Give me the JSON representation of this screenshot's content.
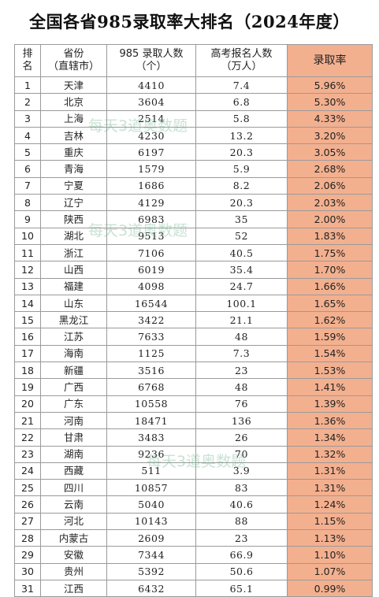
{
  "title": "全国各省985录取率大排名（2024年度）",
  "headers": {
    "rank": [
      "排",
      "名"
    ],
    "province": [
      "省份",
      "（直辖市）"
    ],
    "admitted": [
      "985 录取人数",
      "（个）"
    ],
    "examinees": [
      "高考报名人数",
      "（万人）"
    ],
    "rate": "录取率"
  },
  "rows": [
    {
      "rank": "1",
      "province": "天津",
      "admitted": "4410",
      "examinees": "7.4",
      "rate": "5.96%"
    },
    {
      "rank": "2",
      "province": "北京",
      "admitted": "3604",
      "examinees": "6.8",
      "rate": "5.30%"
    },
    {
      "rank": "3",
      "province": "上海",
      "admitted": "2514",
      "examinees": "5.8",
      "rate": "4.33%"
    },
    {
      "rank": "4",
      "province": "吉林",
      "admitted": "4230",
      "examinees": "13.2",
      "rate": "3.20%"
    },
    {
      "rank": "5",
      "province": "重庆",
      "admitted": "6197",
      "examinees": "20.3",
      "rate": "3.05%"
    },
    {
      "rank": "6",
      "province": "青海",
      "admitted": "1579",
      "examinees": "5.9",
      "rate": "2.68%"
    },
    {
      "rank": "7",
      "province": "宁夏",
      "admitted": "1686",
      "examinees": "8.2",
      "rate": "2.06%"
    },
    {
      "rank": "8",
      "province": "辽宁",
      "admitted": "4129",
      "examinees": "20.3",
      "rate": "2.03%"
    },
    {
      "rank": "9",
      "province": "陕西",
      "admitted": "6983",
      "examinees": "35",
      "rate": "2.00%"
    },
    {
      "rank": "10",
      "province": "湖北",
      "admitted": "9513",
      "examinees": "52",
      "rate": "1.83%"
    },
    {
      "rank": "11",
      "province": "浙江",
      "admitted": "7106",
      "examinees": "40.5",
      "rate": "1.75%"
    },
    {
      "rank": "12",
      "province": "山西",
      "admitted": "6019",
      "examinees": "35.4",
      "rate": "1.70%"
    },
    {
      "rank": "13",
      "province": "福建",
      "admitted": "4098",
      "examinees": "24.7",
      "rate": "1.66%"
    },
    {
      "rank": "14",
      "province": "山东",
      "admitted": "16544",
      "examinees": "100.1",
      "rate": "1.65%"
    },
    {
      "rank": "15",
      "province": "黑龙江",
      "admitted": "3422",
      "examinees": "21.1",
      "rate": "1.62%"
    },
    {
      "rank": "16",
      "province": "江苏",
      "admitted": "7633",
      "examinees": "48",
      "rate": "1.59%"
    },
    {
      "rank": "17",
      "province": "海南",
      "admitted": "1125",
      "examinees": "7.3",
      "rate": "1.54%"
    },
    {
      "rank": "18",
      "province": "新疆",
      "admitted": "3516",
      "examinees": "23",
      "rate": "1.53%"
    },
    {
      "rank": "19",
      "province": "广西",
      "admitted": "6768",
      "examinees": "48",
      "rate": "1.41%"
    },
    {
      "rank": "20",
      "province": "广东",
      "admitted": "10558",
      "examinees": "76",
      "rate": "1.39%"
    },
    {
      "rank": "21",
      "province": "河南",
      "admitted": "18471",
      "examinees": "136",
      "rate": "1.36%"
    },
    {
      "rank": "22",
      "province": "甘肃",
      "admitted": "3483",
      "examinees": "26",
      "rate": "1.34%"
    },
    {
      "rank": "23",
      "province": "湖南",
      "admitted": "9236",
      "examinees": "70",
      "rate": "1.32%"
    },
    {
      "rank": "24",
      "province": "西藏",
      "admitted": "511",
      "examinees": "3.9",
      "rate": "1.31%"
    },
    {
      "rank": "25",
      "province": "四川",
      "admitted": "10857",
      "examinees": "83",
      "rate": "1.31%"
    },
    {
      "rank": "26",
      "province": "云南",
      "admitted": "5040",
      "examinees": "40.6",
      "rate": "1.24%"
    },
    {
      "rank": "27",
      "province": "河北",
      "admitted": "10143",
      "examinees": "88",
      "rate": "1.15%"
    },
    {
      "rank": "28",
      "province": "内蒙古",
      "admitted": "2609",
      "examinees": "23",
      "rate": "1.13%"
    },
    {
      "rank": "29",
      "province": "安徽",
      "admitted": "7344",
      "examinees": "66.9",
      "rate": "1.10%"
    },
    {
      "rank": "30",
      "province": "贵州",
      "admitted": "5392",
      "examinees": "50.6",
      "rate": "1.07%"
    },
    {
      "rank": "31",
      "province": "江西",
      "admitted": "6432",
      "examinees": "65.1",
      "rate": "0.99%"
    }
  ],
  "watermark": "每天3道奥数题",
  "colors": {
    "rate_column_bg": "#f3b08f",
    "watermark": "#6eb48c"
  }
}
